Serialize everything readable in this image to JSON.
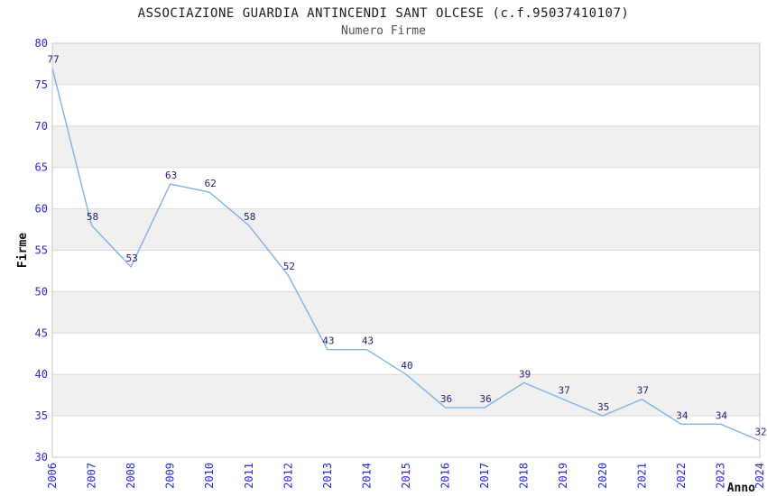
{
  "header": {
    "title": "ASSOCIAZIONE GUARDIA ANTINCENDI SANT OLCESE (c.f.95037410107)",
    "subtitle": "Numero Firme"
  },
  "chart_data": {
    "type": "line",
    "title": "ASSOCIAZIONE GUARDIA ANTINCENDI SANT OLCESE (c.f.95037410107)",
    "subtitle": "Numero Firme",
    "xlabel": "Anno",
    "ylabel": "Firme",
    "categories": [
      "2006",
      "2007",
      "2008",
      "2009",
      "2010",
      "2011",
      "2012",
      "2013",
      "2014",
      "2015",
      "2016",
      "2017",
      "2018",
      "2019",
      "2020",
      "2021",
      "2022",
      "2023",
      "2024"
    ],
    "series": [
      {
        "name": "Numero Firme",
        "values": [
          77,
          58,
          53,
          63,
          62,
          58,
          52,
          43,
          43,
          40,
          36,
          36,
          39,
          37,
          35,
          37,
          34,
          34,
          32
        ]
      }
    ],
    "ylim": [
      30,
      80
    ],
    "ytick_step": 5,
    "grid": "horizontal",
    "band_fill": "alternating",
    "legend_position": "none",
    "data_labels": true,
    "colors": {
      "line": "#7fb2e5",
      "point_label": "#23236b",
      "tick_label": "#2a2acc",
      "axis_title": "#111111",
      "band": "#f0f0f0",
      "gridline": "#dcdcdc",
      "border": "#c8c8c8",
      "background": "#ffffff"
    }
  }
}
